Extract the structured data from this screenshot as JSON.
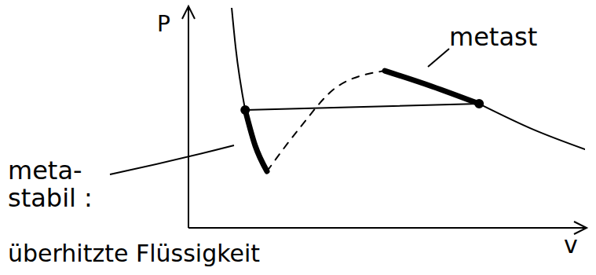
{
  "chart_data": {
    "type": "line",
    "x_label": "v",
    "y_label": "P",
    "xlim": [
      0,
      100
    ],
    "ylim": [
      0,
      100
    ],
    "tick_labels": false,
    "grid": false,
    "color": "#000000",
    "series": [
      {
        "x": [
          10.9,
          11.9,
          14.3
        ],
        "values": [
          100,
          82,
          53.6
        ],
        "line_style": "solid",
        "marker": "none",
        "color": "#000000"
      },
      {
        "x": [
          14.3,
          16.8,
          19.8
        ],
        "values": [
          53.6,
          37.5,
          25.7
        ],
        "line_style": "thick",
        "marker": "none",
        "color": "#000000"
      },
      {
        "x": [
          19.8,
          27.7,
          37.6,
          49.5
        ],
        "values": [
          25.7,
          44.6,
          64.3,
          71.4
        ],
        "line_style": "dashed",
        "marker": "none",
        "color": "#000000"
      },
      {
        "x": [
          49.5,
          61.4,
          73.3
        ],
        "values": [
          71.4,
          64.3,
          56.4
        ],
        "line_style": "thick",
        "marker": "none",
        "color": "#000000"
      },
      {
        "x": [
          73.3,
          87.1,
          100
        ],
        "values": [
          56.4,
          44.6,
          35.7
        ],
        "line_style": "solid",
        "marker": "none",
        "color": "#000000"
      },
      {
        "x": [
          14.3,
          73.3
        ],
        "values": [
          53.6,
          56.4
        ],
        "line_style": "solid",
        "marker": "circle",
        "color": "#000000"
      }
    ],
    "annotations": [
      {
        "text": "metast"
      },
      {
        "text": "meta-\nstabil :"
      },
      {
        "text": "überhitzte Flüssigkeit"
      }
    ]
  }
}
